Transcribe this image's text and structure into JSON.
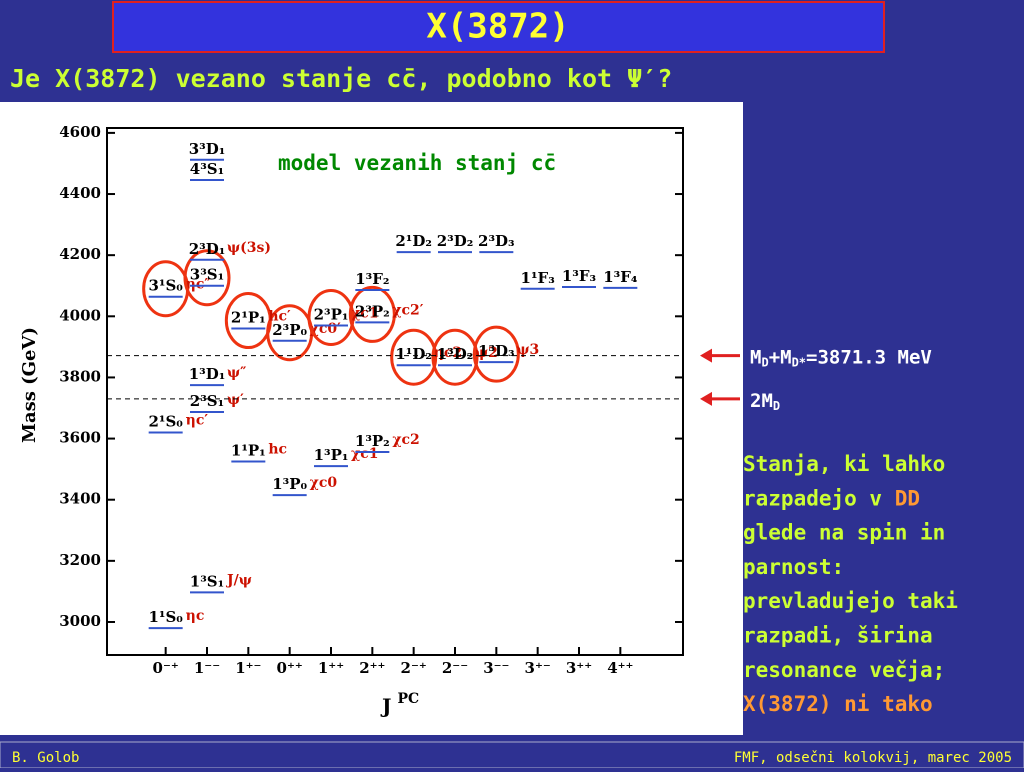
{
  "slide": {
    "title": "X(3872)",
    "subtitle": "Je X(3872) vezano stanje cc̄, podobno kot Ψ′?",
    "notes": [
      [
        {
          "text": "Stanja, ki lahko"
        }
      ],
      [
        {
          "text": "razpadejo v "
        },
        {
          "text": "DD",
          "highlight": true
        }
      ],
      [
        {
          "text": "glede na spin in"
        }
      ],
      [
        {
          "text": "parnost:"
        }
      ],
      [
        {
          "text": "prevladujejo taki"
        }
      ],
      [
        {
          "text": "razpadi, širina"
        }
      ],
      [
        {
          "text": "resonance večja;"
        }
      ],
      [
        {
          "text": "X(3872) ni tako",
          "highlight": true
        }
      ]
    ],
    "footer_left": "B. Golob",
    "footer_right": "FMF, odsečni kolokvij, marec 2005"
  },
  "chart_data": {
    "type": "level",
    "annotation": "model vezanih stanj cc̄",
    "y_label": "Mass (GeV)",
    "x_label": [
      "J",
      "PC"
    ],
    "categories": [
      "0⁻⁺",
      "1⁻⁻",
      "1⁺⁻",
      "0⁺⁺",
      "1⁺⁺",
      "2⁺⁺",
      "2⁻⁺",
      "2⁻⁻",
      "3⁻⁻",
      "3⁺⁻",
      "3⁺⁺",
      "4⁺⁺"
    ],
    "ylim": [
      2892,
      4616
    ],
    "yticks": [
      3000,
      3200,
      3400,
      3600,
      3800,
      4000,
      4200,
      4400,
      4600
    ],
    "color": "#3355cc",
    "highlight_color": "#ee3311",
    "levels": [
      {
        "label": "1¹S₀",
        "category": "0⁻⁺",
        "value": 2980,
        "particle": "ηc"
      },
      {
        "label": "1³S₁",
        "category": "1⁻⁻",
        "value": 3097,
        "particle": "J/ψ"
      },
      {
        "label": "1¹P₁",
        "category": "1⁺⁻",
        "value": 3525,
        "particle": "hc"
      },
      {
        "label": "1³P₀",
        "category": "0⁺⁺",
        "value": 3415,
        "particle": "χc0"
      },
      {
        "label": "1³P₁",
        "category": "1⁺⁺",
        "value": 3510,
        "particle": "χc1"
      },
      {
        "label": "1³P₂",
        "category": "2⁺⁺",
        "value": 3556,
        "particle": "χc2"
      },
      {
        "label": "2¹S₀",
        "category": "0⁻⁺",
        "value": 3620,
        "particle": "ηc′"
      },
      {
        "label": "2³S₁",
        "category": "1⁻⁻",
        "value": 3687,
        "particle": "ψ′"
      },
      {
        "label": "1³D₁",
        "category": "1⁻⁻",
        "value": 3775,
        "particle": "ψ″"
      },
      {
        "label": "1¹D₂",
        "category": "2⁻⁺",
        "value": 3840,
        "particle": "ηc2",
        "highlight": true
      },
      {
        "label": "1³D₂",
        "category": "2⁻⁻",
        "value": 3840,
        "particle": "ψ2",
        "highlight": true
      },
      {
        "label": "1³D₃",
        "category": "3⁻⁻",
        "value": 3850,
        "particle": "ψ3",
        "highlight": true
      },
      {
        "label": "2³P₀",
        "category": "0⁺⁺",
        "value": 3920,
        "particle": "χc0′",
        "highlight": true
      },
      {
        "label": "2¹P₁",
        "category": "1⁺⁻",
        "value": 3960,
        "particle": "hc′",
        "highlight": true
      },
      {
        "label": "2³P₁",
        "category": "1⁺⁺",
        "value": 3970,
        "particle": "χc1′",
        "highlight": true
      },
      {
        "label": "2³P₂",
        "category": "2⁺⁺",
        "value": 3980,
        "particle": "χc2′",
        "highlight": true
      },
      {
        "label": "3¹S₀",
        "category": "0⁻⁺",
        "value": 4064,
        "particle": "ηc″",
        "highlight": true
      },
      {
        "label": "3³S₁",
        "category": "1⁻⁻",
        "value": 4100,
        "highlight": true
      },
      {
        "label": "1³F₂",
        "category": "2⁺⁺",
        "value": 4086
      },
      {
        "label": "1¹F₃",
        "category": "3⁺⁻",
        "value": 4090
      },
      {
        "label": "1³F₃",
        "category": "3⁺⁺",
        "value": 4096
      },
      {
        "label": "1³F₄",
        "category": "4⁺⁺",
        "value": 4093
      },
      {
        "label": "2³D₁",
        "category": "1⁻⁻",
        "value": 4185,
        "particle": "ψ(3s)"
      },
      {
        "label": "2¹D₂",
        "category": "2⁻⁺",
        "value": 4210
      },
      {
        "label": "2³D₂",
        "category": "2⁻⁻",
        "value": 4210
      },
      {
        "label": "2³D₃",
        "category": "3⁻⁻",
        "value": 4210
      },
      {
        "label": "4³S₁",
        "category": "1⁻⁻",
        "value": 4446
      },
      {
        "label": "3³D₁",
        "category": "1⁻⁻",
        "value": 4512
      }
    ],
    "thresholds": [
      {
        "value": 3871.3,
        "label": [
          "M",
          "D",
          "+M",
          "D*",
          "=3871.3 MeV"
        ]
      },
      {
        "value": 3730,
        "label": [
          "2M",
          "D"
        ]
      }
    ]
  }
}
